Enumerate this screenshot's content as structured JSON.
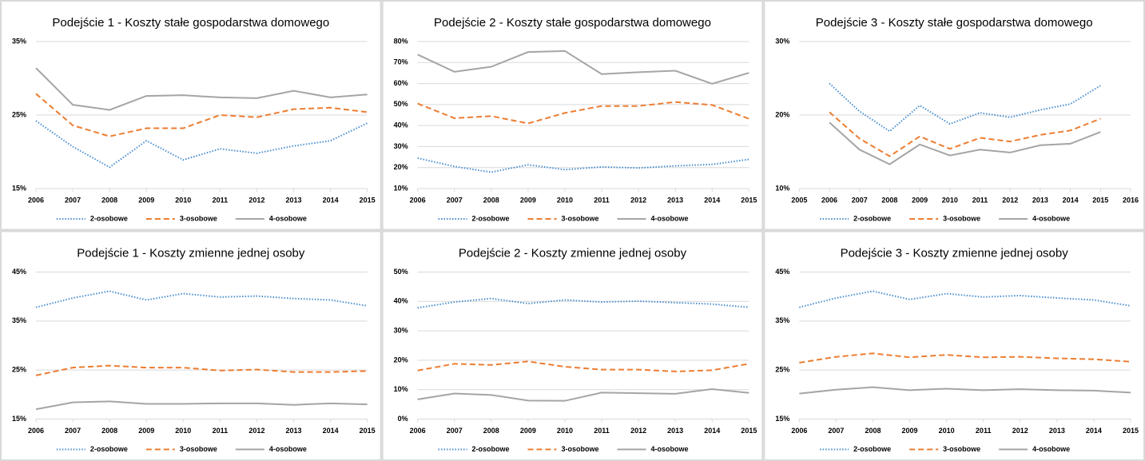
{
  "chart_data": [
    {
      "type": "line",
      "title": "Podejście 1 - Koszty stałe gospodarstwa domowego",
      "x": [
        2006,
        2007,
        2008,
        2009,
        2010,
        2011,
        2012,
        2013,
        2014,
        2015
      ],
      "xlim": [
        2006,
        2015
      ],
      "xticks": [
        2006,
        2007,
        2008,
        2009,
        2010,
        2011,
        2012,
        2013,
        2014,
        2015
      ],
      "ylim": [
        15,
        35
      ],
      "yticks": [
        {
          "value": 15,
          "label": "15%"
        },
        {
          "value": 25,
          "label": "25%"
        },
        {
          "value": 35,
          "label": "35%"
        }
      ],
      "grid": true,
      "legend": "bottom",
      "series": [
        {
          "name": "2-osobowe",
          "color": "#4a8fd0",
          "dash": "dotted",
          "values": [
            24.2,
            20.7,
            17.9,
            21.5,
            18.9,
            20.4,
            19.8,
            20.8,
            21.5,
            23.9
          ]
        },
        {
          "name": "3-osobowe",
          "color": "#ed7d31",
          "dash": "dashed",
          "values": [
            27.9,
            23.6,
            22.1,
            23.2,
            23.2,
            25.0,
            24.7,
            25.8,
            26.0,
            25.4
          ]
        },
        {
          "name": "4-osobowe",
          "color": "#a5a5a5",
          "dash": "solid",
          "values": [
            31.4,
            26.4,
            25.7,
            27.6,
            27.7,
            27.4,
            27.3,
            28.3,
            27.4,
            27.8
          ]
        }
      ]
    },
    {
      "type": "line",
      "title": "Podejście 2 - Koszty stałe gospodarstwa domowego",
      "x": [
        2006,
        2007,
        2008,
        2009,
        2010,
        2011,
        2012,
        2013,
        2014,
        2015
      ],
      "xlim": [
        2006,
        2015
      ],
      "xticks": [
        2006,
        2007,
        2008,
        2009,
        2010,
        2011,
        2012,
        2013,
        2014,
        2015
      ],
      "ylim": [
        10,
        80
      ],
      "yticks": [
        {
          "value": 10,
          "label": "10%"
        },
        {
          "value": 20,
          "label": "20%"
        },
        {
          "value": 30,
          "label": "30%"
        },
        {
          "value": 40,
          "label": "40%"
        },
        {
          "value": 50,
          "label": "50%"
        },
        {
          "value": 60,
          "label": "60%"
        },
        {
          "value": 70,
          "label": "70%"
        },
        {
          "value": 80,
          "label": "80%"
        }
      ],
      "grid": true,
      "legend": "bottom",
      "series": [
        {
          "name": "2-osobowe",
          "color": "#4a8fd0",
          "dash": "dotted",
          "values": [
            24.5,
            20.5,
            17.8,
            21.3,
            19.0,
            20.3,
            19.8,
            20.8,
            21.5,
            23.9
          ]
        },
        {
          "name": "3-osobowe",
          "color": "#ed7d31",
          "dash": "dashed",
          "values": [
            50.5,
            43.5,
            44.5,
            41.0,
            46.0,
            49.3,
            49.3,
            51.2,
            49.8,
            43.2
          ]
        },
        {
          "name": "4-osobowe",
          "color": "#a5a5a5",
          "dash": "solid",
          "values": [
            73.8,
            65.6,
            68.0,
            75.0,
            75.5,
            64.5,
            65.4,
            66.1,
            59.9,
            65.1
          ]
        }
      ]
    },
    {
      "type": "line",
      "title": "Podejście 3 - Koszty stałe gospodarstwa domowego",
      "x": [
        2006,
        2007,
        2008,
        2009,
        2010,
        2011,
        2012,
        2013,
        2014,
        2015
      ],
      "xlim": [
        2005,
        2016
      ],
      "xticks": [
        2005,
        2006,
        2007,
        2008,
        2009,
        2010,
        2011,
        2012,
        2013,
        2014,
        2015,
        2016
      ],
      "ylim": [
        10,
        30
      ],
      "yticks": [
        {
          "value": 10,
          "label": "10%"
        },
        {
          "value": 20,
          "label": "20%"
        },
        {
          "value": 30,
          "label": "30%"
        }
      ],
      "grid": true,
      "legend": "bottom",
      "series": [
        {
          "name": "2-osobowe",
          "color": "#4a8fd0",
          "dash": "dotted",
          "values": [
            24.3,
            20.5,
            17.8,
            21.3,
            18.8,
            20.3,
            19.7,
            20.7,
            21.5,
            24.0
          ]
        },
        {
          "name": "3-osobowe",
          "color": "#ed7d31",
          "dash": "dashed",
          "values": [
            20.4,
            16.8,
            14.4,
            17.1,
            15.4,
            16.9,
            16.4,
            17.3,
            17.9,
            19.5
          ]
        },
        {
          "name": "4-osobowe",
          "color": "#a5a5a5",
          "dash": "solid",
          "values": [
            19.0,
            15.3,
            13.3,
            16.0,
            14.5,
            15.3,
            14.9,
            15.9,
            16.1,
            17.7
          ]
        }
      ]
    },
    {
      "type": "line",
      "title": "Podejście 1 - Koszty zmienne jednej osoby",
      "x": [
        2006,
        2007,
        2008,
        2009,
        2010,
        2011,
        2012,
        2013,
        2014,
        2015
      ],
      "xlim": [
        2006,
        2015
      ],
      "xticks": [
        2006,
        2007,
        2008,
        2009,
        2010,
        2011,
        2012,
        2013,
        2014,
        2015
      ],
      "ylim": [
        15,
        45
      ],
      "yticks": [
        {
          "value": 15,
          "label": "15%"
        },
        {
          "value": 25,
          "label": "25%"
        },
        {
          "value": 35,
          "label": "35%"
        },
        {
          "value": 45,
          "label": "45%"
        }
      ],
      "grid": true,
      "legend": "bottom",
      "series": [
        {
          "name": "2-osobowe",
          "color": "#4a8fd0",
          "dash": "dotted",
          "values": [
            37.8,
            39.7,
            41.1,
            39.3,
            40.6,
            39.9,
            40.1,
            39.6,
            39.3,
            38.1
          ]
        },
        {
          "name": "3-osobowe",
          "color": "#ed7d31",
          "dash": "dashed",
          "values": [
            23.9,
            25.5,
            25.9,
            25.5,
            25.5,
            24.9,
            25.1,
            24.6,
            24.6,
            24.8
          ]
        },
        {
          "name": "4-osobowe",
          "color": "#a5a5a5",
          "dash": "solid",
          "values": [
            17.0,
            18.4,
            18.6,
            18.1,
            18.1,
            18.2,
            18.2,
            17.9,
            18.2,
            18.0
          ]
        }
      ]
    },
    {
      "type": "line",
      "title": "Podejście 2 - Koszty zmienne jednej osoby",
      "x": [
        2006,
        2007,
        2008,
        2009,
        2010,
        2011,
        2012,
        2013,
        2014,
        2015
      ],
      "xlim": [
        2006,
        2015
      ],
      "xticks": [
        2006,
        2007,
        2008,
        2009,
        2010,
        2011,
        2012,
        2013,
        2014,
        2015
      ],
      "ylim": [
        0,
        50
      ],
      "yticks": [
        {
          "value": 0,
          "label": "0%"
        },
        {
          "value": 10,
          "label": "10%"
        },
        {
          "value": 20,
          "label": "20%"
        },
        {
          "value": 30,
          "label": "30%"
        },
        {
          "value": 40,
          "label": "40%"
        },
        {
          "value": 50,
          "label": "50%"
        }
      ],
      "grid": true,
      "legend": "bottom",
      "series": [
        {
          "name": "2-osobowe",
          "color": "#4a8fd0",
          "dash": "dotted",
          "values": [
            37.8,
            39.8,
            41.0,
            39.3,
            40.5,
            39.8,
            40.1,
            39.6,
            39.1,
            38.0
          ]
        },
        {
          "name": "3-osobowe",
          "color": "#ed7d31",
          "dash": "dashed",
          "values": [
            16.5,
            18.8,
            18.4,
            19.6,
            17.8,
            16.8,
            16.8,
            16.2,
            16.6,
            18.8
          ]
        },
        {
          "name": "4-osobowe",
          "color": "#a5a5a5",
          "dash": "solid",
          "values": [
            6.7,
            8.7,
            8.2,
            6.3,
            6.2,
            9.0,
            8.8,
            8.6,
            10.2,
            8.9
          ]
        }
      ]
    },
    {
      "type": "line",
      "title": "Podejście 3 - Koszty zmienne jednej osoby",
      "x": [
        2006,
        2007,
        2008,
        2009,
        2010,
        2011,
        2012,
        2013,
        2014,
        2015
      ],
      "xlim": [
        2006,
        2015
      ],
      "xticks": [
        2006,
        2007,
        2008,
        2009,
        2010,
        2011,
        2012,
        2013,
        2014,
        2015
      ],
      "ylim": [
        15,
        45
      ],
      "yticks": [
        {
          "value": 15,
          "label": "15%"
        },
        {
          "value": 25,
          "label": "25%"
        },
        {
          "value": 35,
          "label": "35%"
        },
        {
          "value": 45,
          "label": "45%"
        }
      ],
      "grid": true,
      "legend": "bottom",
      "series": [
        {
          "name": "2-osobowe",
          "color": "#4a8fd0",
          "dash": "dotted",
          "values": [
            37.8,
            39.7,
            41.1,
            39.4,
            40.6,
            39.9,
            40.2,
            39.7,
            39.3,
            38.1
          ]
        },
        {
          "name": "3-osobowe",
          "color": "#ed7d31",
          "dash": "dashed",
          "values": [
            26.5,
            27.7,
            28.4,
            27.6,
            28.1,
            27.6,
            27.7,
            27.4,
            27.2,
            26.7
          ]
        },
        {
          "name": "4-osobowe",
          "color": "#a5a5a5",
          "dash": "solid",
          "values": [
            20.2,
            21.0,
            21.5,
            20.9,
            21.2,
            20.9,
            21.1,
            20.9,
            20.8,
            20.4
          ]
        }
      ]
    }
  ]
}
